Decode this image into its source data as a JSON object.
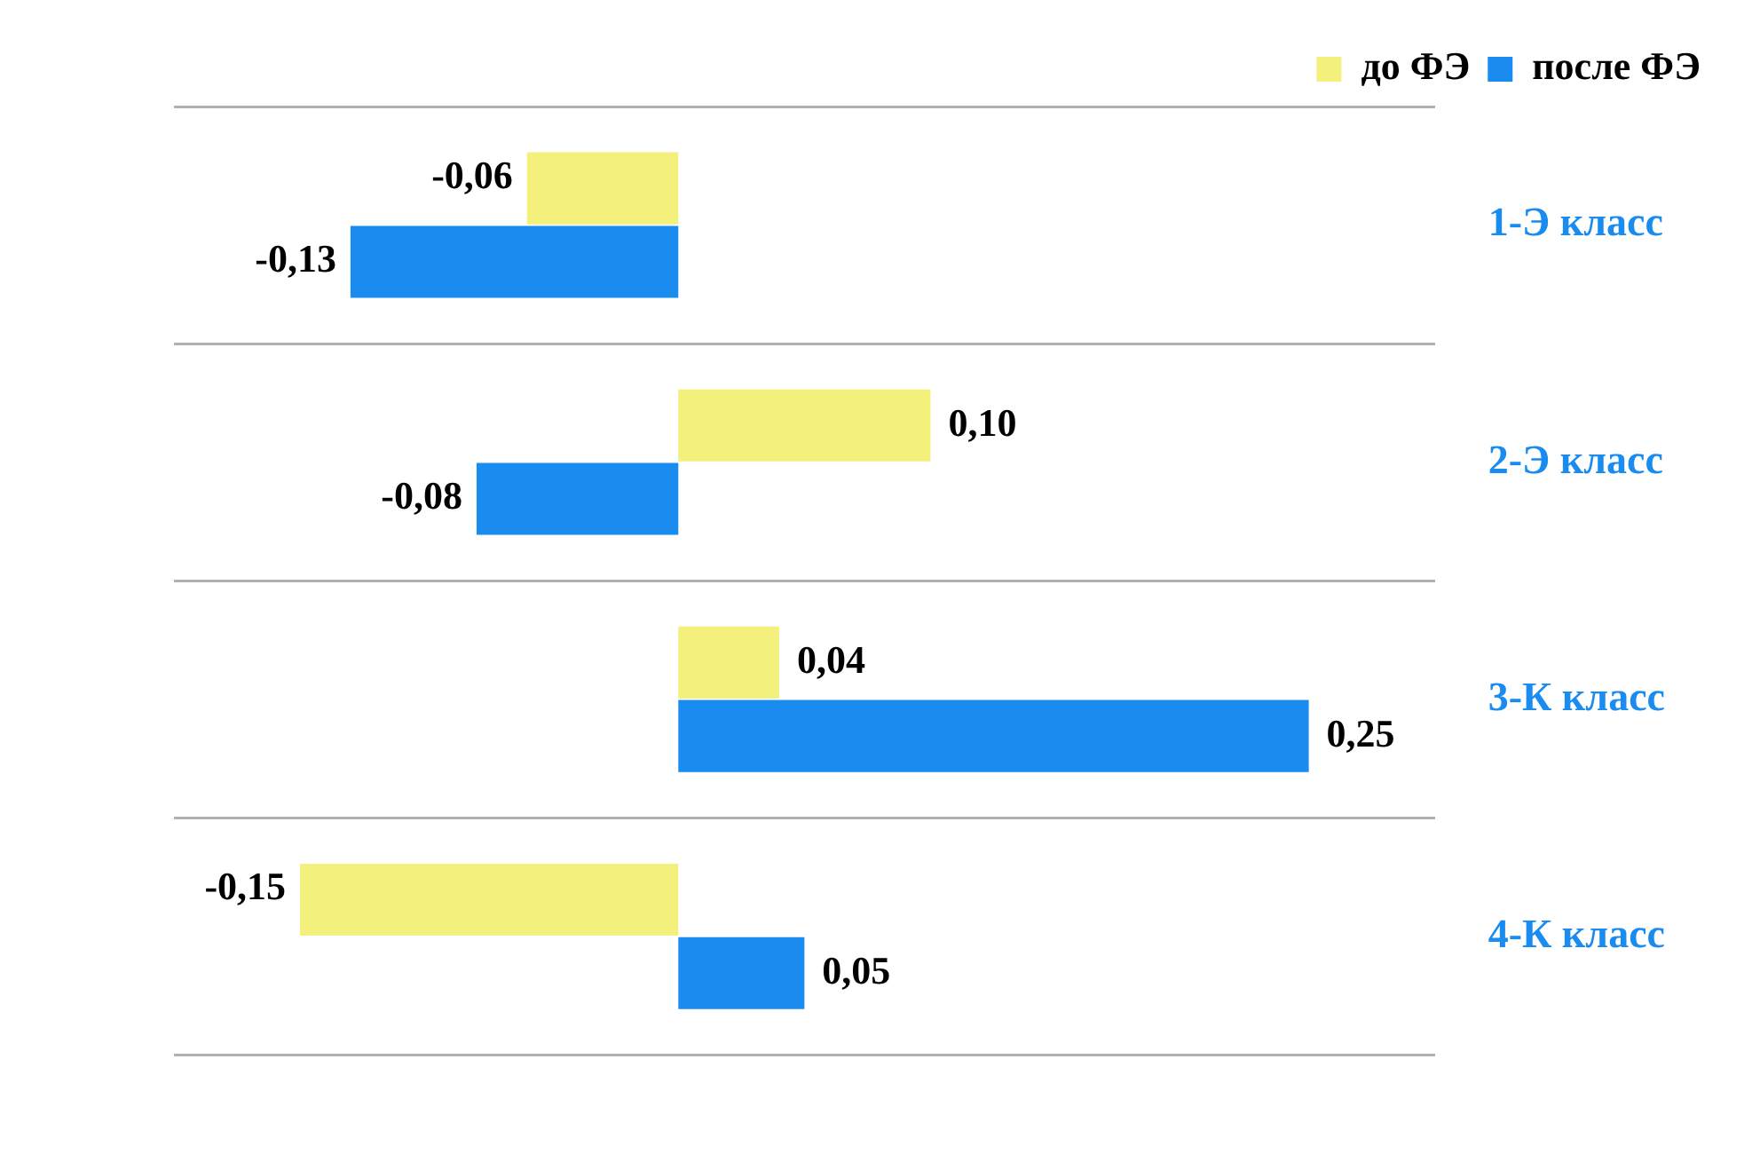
{
  "chart_data": {
    "type": "bar",
    "orientation": "horizontal",
    "categories": [
      "1-Э класс",
      "2-Э класс",
      "3-К класс",
      "4-К класс"
    ],
    "series": [
      {
        "name": "до ФЭ",
        "color": "#f4f07c",
        "values": [
          -0.06,
          0.1,
          0.04,
          -0.15
        ],
        "value_labels": [
          "-0,06",
          "0,10",
          "0,04",
          "-0,15"
        ]
      },
      {
        "name": "после ФЭ",
        "color": "#1a8cf0",
        "values": [
          -0.13,
          -0.08,
          0.25,
          0.05
        ],
        "value_labels": [
          "-0,13",
          "-0,08",
          "0,25",
          "0,05"
        ]
      }
    ],
    "grid": "y",
    "legend": "top right"
  }
}
